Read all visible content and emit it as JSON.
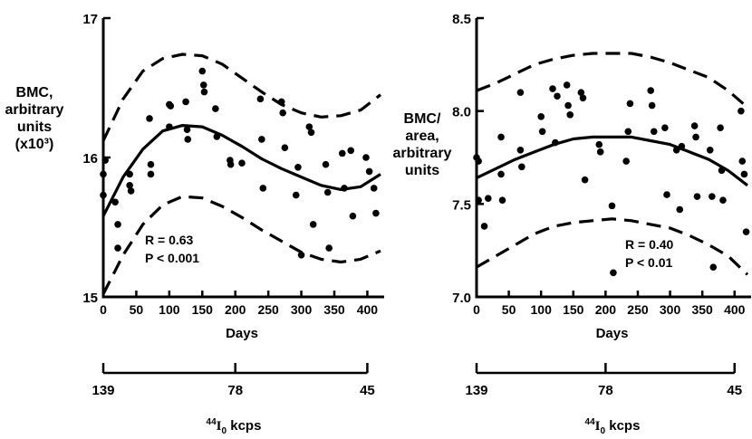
{
  "chart_data": [
    {
      "type": "scatter",
      "ylabel": [
        "BMC,",
        "arbitrary",
        "units",
        "(x10³)"
      ],
      "xlabel": "Days",
      "xlim": [
        0,
        420
      ],
      "ylim": [
        15,
        17
      ],
      "xticks": [
        "0",
        "50",
        "100",
        "150",
        "200",
        "250",
        "300",
        "350",
        "400"
      ],
      "yticks": [
        "15",
        "16",
        "17"
      ],
      "annotation": [
        "R = 0.63",
        "P < 0.001"
      ],
      "points": [
        [
          0,
          15.88
        ],
        [
          0,
          15.73
        ],
        [
          3,
          15.98
        ],
        [
          18,
          15.68
        ],
        [
          22,
          15.52
        ],
        [
          22,
          15.35
        ],
        [
          40,
          15.88
        ],
        [
          40,
          15.8
        ],
        [
          42,
          15.76
        ],
        [
          70,
          16.28
        ],
        [
          72,
          15.95
        ],
        [
          72,
          15.88
        ],
        [
          100,
          16.38
        ],
        [
          100,
          16.22
        ],
        [
          102,
          16.37
        ],
        [
          125,
          16.4
        ],
        [
          127,
          16.2
        ],
        [
          128,
          16.13
        ],
        [
          150,
          16.62
        ],
        [
          152,
          16.52
        ],
        [
          153,
          16.47
        ],
        [
          170,
          16.35
        ],
        [
          172,
          16.15
        ],
        [
          192,
          15.98
        ],
        [
          193,
          15.95
        ],
        [
          210,
          15.96
        ],
        [
          238,
          16.42
        ],
        [
          240,
          16.13
        ],
        [
          242,
          15.78
        ],
        [
          270,
          16.4
        ],
        [
          272,
          16.32
        ],
        [
          275,
          16.07
        ],
        [
          292,
          15.73
        ],
        [
          295,
          15.93
        ],
        [
          300,
          15.3
        ],
        [
          312,
          16.22
        ],
        [
          315,
          16.18
        ],
        [
          318,
          15.52
        ],
        [
          337,
          15.95
        ],
        [
          340,
          15.75
        ],
        [
          342,
          15.35
        ],
        [
          362,
          16.03
        ],
        [
          365,
          15.78
        ],
        [
          375,
          16.05
        ],
        [
          378,
          15.58
        ],
        [
          398,
          16.0
        ],
        [
          403,
          15.9
        ],
        [
          410,
          15.78
        ],
        [
          413,
          15.6
        ]
      ],
      "series": [
        {
          "style": "solid",
          "x": [
            0,
            30,
            60,
            90,
            120,
            150,
            180,
            210,
            240,
            270,
            300,
            330,
            360,
            390,
            420
          ],
          "y": [
            15.58,
            15.86,
            16.06,
            16.19,
            16.23,
            16.22,
            16.16,
            16.08,
            15.99,
            15.92,
            15.86,
            15.8,
            15.77,
            15.79,
            15.88
          ]
        },
        {
          "style": "dashed",
          "x": [
            0,
            30,
            60,
            90,
            120,
            150,
            180,
            210,
            240,
            270,
            300,
            330,
            360,
            390,
            420
          ],
          "y": [
            16.12,
            16.42,
            16.62,
            16.71,
            16.74,
            16.73,
            16.67,
            16.57,
            16.47,
            16.38,
            16.32,
            16.29,
            16.3,
            16.34,
            16.45
          ]
        },
        {
          "style": "dashed",
          "x": [
            0,
            30,
            60,
            90,
            120,
            150,
            180,
            210,
            240,
            270,
            300,
            330,
            360,
            390,
            420
          ],
          "y": [
            15.02,
            15.3,
            15.52,
            15.66,
            15.72,
            15.71,
            15.65,
            15.57,
            15.48,
            15.4,
            15.32,
            15.27,
            15.25,
            15.27,
            15.33
          ]
        }
      ],
      "secondary_axis": {
        "ticks": [
          "139",
          "78",
          "45"
        ],
        "tick_days": [
          0,
          200,
          400
        ],
        "label": [
          "44",
          "I",
          "0",
          " kcps"
        ]
      }
    },
    {
      "type": "scatter",
      "ylabel": [
        "BMC/",
        "area,",
        "arbitrary",
        "units"
      ],
      "xlabel": "Days",
      "xlim": [
        0,
        420
      ],
      "ylim": [
        7.0,
        8.5
      ],
      "xticks": [
        "0",
        "50",
        "100",
        "150",
        "200",
        "250",
        "300",
        "350",
        "400"
      ],
      "yticks": [
        "7.0",
        "7.5",
        "8.0",
        "8.5"
      ],
      "annotation": [
        "R = 0.40",
        "P < 0.01"
      ],
      "points": [
        [
          0,
          7.75
        ],
        [
          3,
          7.73
        ],
        [
          3,
          7.52
        ],
        [
          12,
          7.38
        ],
        [
          18,
          7.53
        ],
        [
          38,
          7.86
        ],
        [
          38,
          7.66
        ],
        [
          40,
          7.52
        ],
        [
          68,
          8.1
        ],
        [
          68,
          7.79
        ],
        [
          70,
          7.7
        ],
        [
          100,
          7.97
        ],
        [
          102,
          7.89
        ],
        [
          118,
          8.12
        ],
        [
          122,
          7.83
        ],
        [
          125,
          8.08
        ],
        [
          140,
          8.14
        ],
        [
          142,
          8.03
        ],
        [
          145,
          7.98
        ],
        [
          162,
          8.1
        ],
        [
          165,
          8.07
        ],
        [
          168,
          7.63
        ],
        [
          190,
          7.82
        ],
        [
          192,
          7.78
        ],
        [
          210,
          7.49
        ],
        [
          212,
          7.13
        ],
        [
          232,
          7.73
        ],
        [
          235,
          7.89
        ],
        [
          238,
          8.04
        ],
        [
          270,
          8.11
        ],
        [
          272,
          8.03
        ],
        [
          275,
          7.89
        ],
        [
          292,
          7.91
        ],
        [
          295,
          7.55
        ],
        [
          310,
          7.79
        ],
        [
          315,
          7.47
        ],
        [
          318,
          7.81
        ],
        [
          338,
          7.92
        ],
        [
          340,
          7.86
        ],
        [
          342,
          7.54
        ],
        [
          362,
          7.79
        ],
        [
          365,
          7.54
        ],
        [
          367,
          7.16
        ],
        [
          378,
          7.91
        ],
        [
          380,
          7.68
        ],
        [
          382,
          7.52
        ],
        [
          410,
          8.0
        ],
        [
          412,
          7.73
        ],
        [
          415,
          7.66
        ],
        [
          418,
          7.35
        ]
      ],
      "series": [
        {
          "style": "solid",
          "x": [
            0,
            30,
            60,
            90,
            120,
            150,
            180,
            210,
            240,
            270,
            300,
            330,
            360,
            390,
            420
          ],
          "y": [
            7.64,
            7.69,
            7.74,
            7.78,
            7.82,
            7.85,
            7.86,
            7.86,
            7.86,
            7.84,
            7.82,
            7.78,
            7.74,
            7.68,
            7.6
          ]
        },
        {
          "style": "dashed",
          "x": [
            0,
            30,
            60,
            90,
            120,
            150,
            180,
            210,
            240,
            270,
            300,
            330,
            360,
            390,
            420
          ],
          "y": [
            8.11,
            8.15,
            8.2,
            8.25,
            8.28,
            8.3,
            8.31,
            8.31,
            8.31,
            8.29,
            8.26,
            8.22,
            8.18,
            8.11,
            8.02
          ]
        },
        {
          "style": "dashed",
          "x": [
            0,
            30,
            60,
            90,
            120,
            150,
            180,
            210,
            240,
            270,
            300,
            330,
            360,
            390,
            420
          ],
          "y": [
            7.16,
            7.22,
            7.28,
            7.34,
            7.38,
            7.4,
            7.41,
            7.42,
            7.41,
            7.39,
            7.37,
            7.33,
            7.28,
            7.22,
            7.12
          ]
        }
      ],
      "secondary_axis": {
        "ticks": [
          "139",
          "78",
          "45"
        ],
        "tick_days": [
          0,
          200,
          400
        ],
        "label": [
          "44",
          "I",
          "0",
          " kcps"
        ]
      }
    }
  ]
}
